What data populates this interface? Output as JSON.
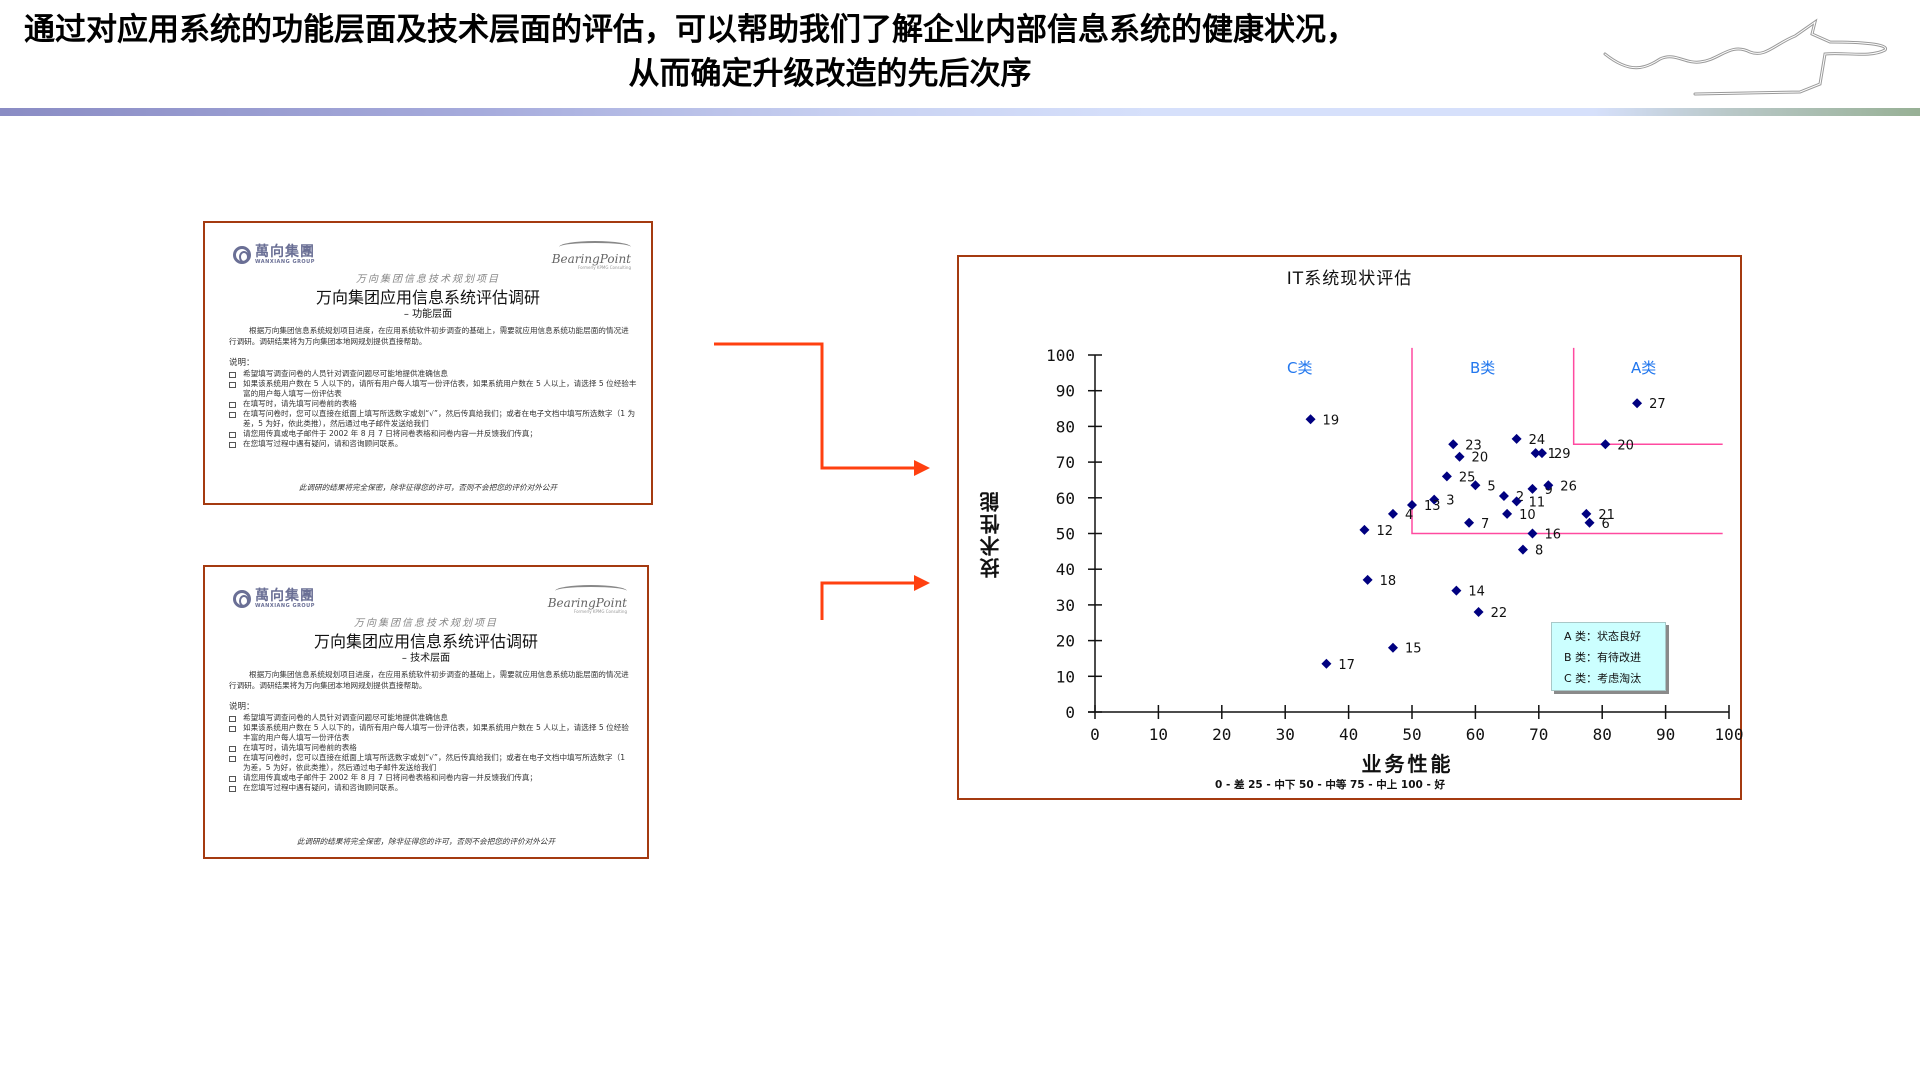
{
  "slide": {
    "title_line1": "通过对应用系统的功能层面及技术层面的评估，可以帮助我们了解企业内部信息系统的健康状况，",
    "title_line2": "从而确定升级改造的先后次序"
  },
  "documents": [
    {
      "logo_left_cn": "萬向集團",
      "logo_left_en": "WANXIANG GROUP",
      "logo_right": "BearingPoint",
      "logo_right_sub": "Formerly KPMG Consulting",
      "project": "万向集团信息技术规划项目",
      "title": "万向集团应用信息系统评估调研",
      "subtitle": "– 功能层面",
      "intro": "根据万向集团信息系统规划项目进度，在应用系统软件初步调查的基础上，需要就应用信息系统功能层面的情况进行调研。调研结果将为万向集团本地网规划提供直接帮助。",
      "notes_heading": "说明：",
      "notes": [
        "希望填写调查问卷的人员针对调查问题尽可能地提供准确信息",
        "如果该系统用户数在 5 人以下的，请所有用户每人填写一份评估表，如果系统用户数在 5 人以上，请选择 5 位经验丰富的用户每人填写一份评估表",
        "在填写时，请先填写问卷前的表格",
        "在填写问卷时，您可以直接在纸面上填写所选数字或划“√”，然后传真给我们；或者在电子文档中填写所选数字（1 为差，5 为好，依此类推），然后通过电子邮件发送给我们",
        "请您用传真或电子邮件于 2002 年 8 月 7 日将问卷表格和问卷内容一并反馈我们传真；",
        "在您填写过程中遇有疑问，请和咨询顾问联系。"
      ],
      "footer": "此调研的结果将完全保密，除非征得您的许可，否则不会把您的评价对外公开"
    },
    {
      "logo_left_cn": "萬向集團",
      "logo_left_en": "WANXIANG GROUP",
      "logo_right": "BearingPoint",
      "logo_right_sub": "Formerly KPMG Consulting",
      "project": "万向集团信息技术规划项目",
      "title": "万向集团应用信息系统评估调研",
      "subtitle": "– 技术层面",
      "intro": "根据万向集团信息系统规划项目进度，在应用系统软件初步调查的基础上，需要就应用信息系统功能层面的情况进行调研。调研结果将为万向集团本地网规划提供直接帮助。",
      "notes_heading": "说明：",
      "notes": [
        "希望填写调查问卷的人员针对调查问题尽可能地提供准确信息",
        "如果该系统用户数在 5 人以下的，请所有用户每人填写一份评估表，如果系统用户数在 5 人以上，请选择 5 位经验丰富的用户每人填写一份评估表",
        "在填写时，请先填写问卷前的表格",
        "在填写问卷时，您可以直接在纸面上填写所选数字或划“√”，然后传真给我们；或者在电子文档中填写所选数字（1 为差，5 为好，依此类推），然后通过电子邮件发送给我们",
        "请您用传真或电子邮件于 2002 年 8 月 7 日将问卷表格和问卷内容一并反馈我们传真；",
        "在您填写过程中遇有疑问，请和咨询顾问联系。"
      ],
      "footer": "此调研的结果将完全保密，除非征得您的许可，否则不会把您的评价对外公开"
    }
  ],
  "colors": {
    "frame": "#a43a10",
    "arrow": "#ff4010",
    "point": "#000080",
    "boundary": "#ff4aa0",
    "category_label": "#2277ee",
    "legend_bg": "#ccffff"
  },
  "chart": {
    "title": "IT系统现状评估",
    "xlabel": "业务性能",
    "ylabel": "技术性能",
    "scale_note": "0 - 差   25 - 中下   50 - 中等   75 - 中上   100 - 好",
    "categories": [
      "C类",
      "B类",
      "A类"
    ],
    "legend": [
      "A 类：状态良好",
      "B 类：有待改进",
      "C 类：考虑淘汰"
    ]
  },
  "chart_data": {
    "type": "scatter",
    "title": "IT系统现状评估",
    "xlabel": "业务性能",
    "ylabel": "技术性能",
    "xlim": [
      0,
      100
    ],
    "ylim": [
      0,
      100
    ],
    "xticks": [
      0,
      10,
      20,
      30,
      40,
      50,
      60,
      70,
      80,
      90,
      100
    ],
    "yticks": [
      0,
      10,
      20,
      30,
      40,
      50,
      60,
      70,
      80,
      90,
      100
    ],
    "grid": false,
    "points": [
      {
        "label": "19",
        "x": 34,
        "y": 82
      },
      {
        "label": "27",
        "x": 85.5,
        "y": 86.5
      },
      {
        "label": "20",
        "x": 80.5,
        "y": 75
      },
      {
        "label": "23",
        "x": 56.5,
        "y": 75
      },
      {
        "label": "24",
        "x": 66.5,
        "y": 76.5
      },
      {
        "label": "20",
        "x": 57.5,
        "y": 71.5
      },
      {
        "label": "1",
        "x": 69.5,
        "y": 72.5
      },
      {
        "label": "29",
        "x": 70.5,
        "y": 72.5
      },
      {
        "label": "25",
        "x": 55.5,
        "y": 66
      },
      {
        "label": "5",
        "x": 60,
        "y": 63.5
      },
      {
        "label": "9",
        "x": 69,
        "y": 62.5
      },
      {
        "label": "26",
        "x": 71.5,
        "y": 63.5
      },
      {
        "label": "2",
        "x": 64.5,
        "y": 60.5
      },
      {
        "label": "11",
        "x": 66.5,
        "y": 59
      },
      {
        "label": "3",
        "x": 53.5,
        "y": 59.5
      },
      {
        "label": "13",
        "x": 50,
        "y": 58
      },
      {
        "label": "4",
        "x": 47,
        "y": 55.5
      },
      {
        "label": "7",
        "x": 59,
        "y": 53
      },
      {
        "label": "10",
        "x": 65,
        "y": 55.5
      },
      {
        "label": "21",
        "x": 77.5,
        "y": 55.5
      },
      {
        "label": "6",
        "x": 78,
        "y": 53
      },
      {
        "label": "12",
        "x": 42.5,
        "y": 51
      },
      {
        "label": "16",
        "x": 69,
        "y": 50
      },
      {
        "label": "8",
        "x": 67.5,
        "y": 45.5
      },
      {
        "label": "18",
        "x": 43,
        "y": 37
      },
      {
        "label": "14",
        "x": 57,
        "y": 34
      },
      {
        "label": "22",
        "x": 60.5,
        "y": 28
      },
      {
        "label": "15",
        "x": 47,
        "y": 18
      },
      {
        "label": "17",
        "x": 36.5,
        "y": 13.5
      }
    ],
    "regions": [
      {
        "name": "C类",
        "meaning": "考虑淘汰"
      },
      {
        "name": "B类",
        "meaning": "有待改进",
        "x_min": 50,
        "y_min": 50
      },
      {
        "name": "A类",
        "meaning": "状态良好",
        "x_min": 75.5,
        "y_min": 75
      }
    ],
    "annotations": [
      "C类",
      "B类",
      "A类",
      "0 - 差   25 - 中下   50 - 中等   75 - 中上   100 - 好"
    ],
    "legend": [
      "A 类：状态良好",
      "B 类：有待改进",
      "C 类：考虑淘汰"
    ],
    "legend_position": "lower right"
  }
}
